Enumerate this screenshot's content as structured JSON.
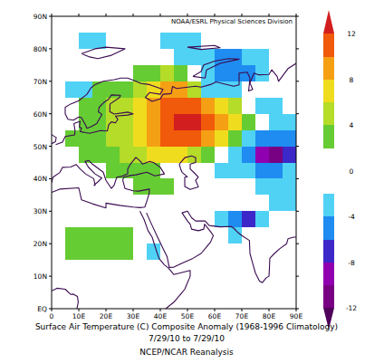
{
  "chart_data": {
    "type": "heatmap",
    "title": "Surface Air Temperature (C) Composite Anomaly (1968-1996 Climatology)",
    "subtitle": "7/29/10  to 7/29/10",
    "annotations": [
      "NOAA/ESRL Physical Sciences Division",
      "NCEP/NCAR Reanalysis"
    ],
    "x": [
      2.5,
      7.5,
      12.5,
      17.5,
      22.5,
      27.5,
      32.5,
      37.5,
      42.5,
      47.5,
      52.5,
      57.5,
      62.5,
      67.5,
      72.5,
      77.5,
      82.5,
      87.5
    ],
    "y": [
      87.5,
      82.5,
      77.5,
      72.5,
      67.5,
      62.5,
      57.5,
      52.5,
      47.5,
      42.5,
      37.5,
      32.5,
      27.5,
      22.5,
      17.5,
      12.5,
      7.5,
      2.5
    ],
    "values": [
      [
        0,
        0,
        0,
        0,
        0,
        0,
        0,
        0,
        0,
        0,
        0,
        0,
        0,
        0,
        0,
        0,
        0,
        0
      ],
      [
        0,
        0,
        -3,
        -3,
        0,
        0,
        0,
        0,
        -3,
        -3,
        -3,
        0,
        0,
        0,
        0,
        0,
        0,
        0
      ],
      [
        0,
        0,
        0,
        0,
        0,
        0,
        0,
        0,
        0,
        -3,
        -3,
        -3,
        -5,
        -5,
        -3,
        -3,
        0,
        0
      ],
      [
        0,
        0,
        0,
        0,
        0,
        0,
        3,
        3,
        5,
        3,
        0,
        -3,
        -5,
        -6,
        -5,
        -3,
        0,
        0
      ],
      [
        0,
        -3,
        -3,
        3,
        3,
        3,
        5,
        7,
        9,
        8,
        5,
        -3,
        -4,
        -3,
        0,
        0,
        0,
        0
      ],
      [
        0,
        0,
        3,
        3,
        4,
        5,
        7,
        9,
        10,
        11,
        10,
        9,
        7,
        4,
        0,
        -3,
        -3,
        0
      ],
      [
        0,
        0,
        3,
        3,
        4,
        5,
        7,
        9,
        11,
        13,
        13,
        11,
        9,
        6,
        3,
        0,
        -3,
        -3
      ],
      [
        0,
        3,
        3,
        3,
        4,
        5,
        7,
        9,
        10,
        11,
        10,
        8,
        6,
        3,
        -3,
        -5,
        -6,
        -5
      ],
      [
        0,
        0,
        3,
        3,
        3,
        4,
        5,
        7,
        7,
        6,
        4,
        3,
        0,
        -3,
        -6,
        -9,
        -11,
        -7
      ],
      [
        0,
        0,
        0,
        0,
        3,
        3,
        3,
        3,
        0,
        0,
        0,
        0,
        -3,
        -4,
        -4,
        -5,
        -5,
        -4
      ],
      [
        0,
        0,
        0,
        0,
        0,
        0,
        3,
        3,
        3,
        0,
        0,
        0,
        0,
        0,
        0,
        -3,
        -3,
        -3
      ],
      [
        0,
        0,
        0,
        0,
        0,
        0,
        0,
        0,
        0,
        0,
        0,
        0,
        0,
        0,
        0,
        0,
        -3,
        -3
      ],
      [
        0,
        0,
        0,
        0,
        0,
        0,
        0,
        0,
        0,
        0,
        0,
        0,
        -3,
        -5,
        -7,
        -3,
        0,
        0
      ],
      [
        0,
        3,
        3,
        3,
        3,
        3,
        0,
        0,
        0,
        0,
        0,
        0,
        0,
        -3,
        0,
        0,
        0,
        0
      ],
      [
        0,
        3,
        3,
        3,
        3,
        3,
        0,
        -3,
        0,
        0,
        0,
        0,
        0,
        0,
        0,
        0,
        0,
        0
      ],
      [
        0,
        0,
        0,
        0,
        0,
        0,
        0,
        0,
        0,
        0,
        0,
        0,
        0,
        0,
        0,
        0,
        0,
        0
      ],
      [
        0,
        0,
        0,
        0,
        0,
        0,
        0,
        0,
        0,
        0,
        0,
        0,
        0,
        0,
        0,
        0,
        0,
        0
      ],
      [
        0,
        0,
        0,
        0,
        0,
        0,
        0,
        0,
        0,
        0,
        0,
        0,
        0,
        0,
        0,
        0,
        0,
        0
      ]
    ],
    "xlim": [
      0,
      90
    ],
    "ylim": [
      0,
      90
    ],
    "xticks": [
      0,
      {
        "value": 10,
        "label": "10E"
      },
      {
        "value": 20,
        "label": "20E"
      },
      {
        "value": 30,
        "label": "30E"
      },
      {
        "value": 40,
        "label": "40E"
      },
      {
        "value": 50,
        "label": "50E"
      },
      {
        "value": 60,
        "label": "60E"
      },
      {
        "value": 70,
        "label": "70E"
      },
      {
        "value": 80,
        "label": "80E"
      },
      {
        "value": 90,
        "label": "90E"
      }
    ],
    "yticks": [
      {
        "value": 0,
        "label": "EQ"
      },
      {
        "value": 10,
        "label": "10N"
      },
      {
        "value": 20,
        "label": "20N"
      },
      {
        "value": 30,
        "label": "30N"
      },
      {
        "value": 40,
        "label": "40N"
      },
      {
        "value": 50,
        "label": "50N"
      },
      {
        "value": 60,
        "label": "60N"
      },
      {
        "value": 70,
        "label": "70N"
      },
      {
        "value": 80,
        "label": "80N"
      },
      {
        "value": 90,
        "label": "90N"
      }
    ],
    "colorbar": {
      "range": [
        -12,
        12
      ],
      "ticks": [
        -12,
        -8,
        -4,
        0,
        4,
        8,
        12
      ],
      "levels": [
        -12,
        -10,
        -8,
        -6,
        -4,
        -2,
        2,
        4,
        6,
        8,
        10,
        12
      ],
      "colors": [
        "#50005a",
        "#780082",
        "#9000b0",
        "#3c28c8",
        "#1e8cf0",
        "#50d2f5",
        "#ffffff",
        "#66cc33",
        "#b4dc28",
        "#f0dc1e",
        "#f5a014",
        "#f05a0a",
        "#d21e1e"
      ]
    }
  }
}
